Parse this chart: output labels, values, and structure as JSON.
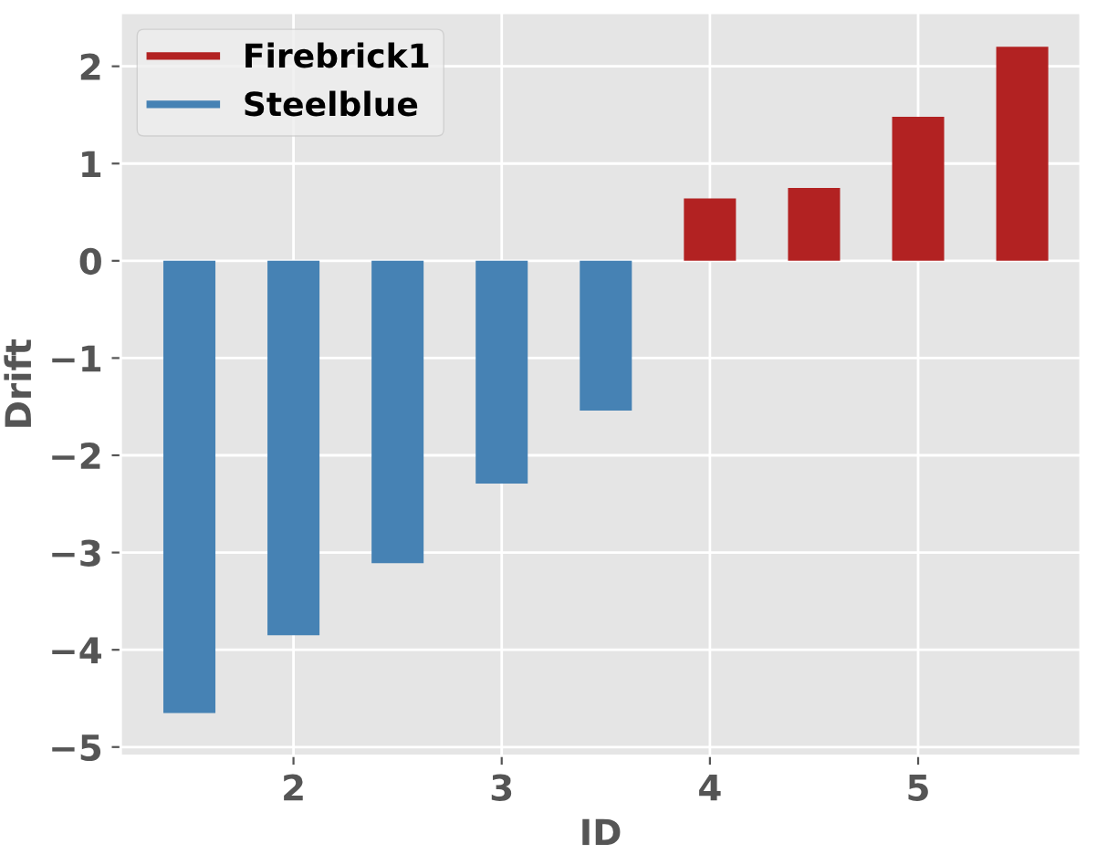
{
  "chart_data": {
    "type": "bar",
    "xlabel": "ID",
    "ylabel": "Drift",
    "series": [
      {
        "name": "Firebrick1",
        "color": "#b22222",
        "x": [
          4.0,
          4.5,
          5.0,
          5.5
        ],
        "values": [
          0.64,
          0.75,
          1.48,
          2.2
        ]
      },
      {
        "name": "Steelblue",
        "color": "#4682b4",
        "x": [
          1.5,
          2.0,
          2.5,
          3.0,
          3.5
        ],
        "values": [
          -4.65,
          -3.85,
          -3.11,
          -2.29,
          -1.54
        ]
      }
    ],
    "xlim": [
      1.17,
      5.78
    ],
    "ylim": [
      -5.09,
      2.55
    ],
    "xticks": [
      2,
      3,
      4,
      5
    ],
    "yticks": [
      {
        "value": -5,
        "label": "−5"
      },
      {
        "value": -4,
        "label": "−4"
      },
      {
        "value": -3,
        "label": "−3"
      },
      {
        "value": -2,
        "label": "−2"
      },
      {
        "value": -1,
        "label": "−1"
      },
      0,
      1,
      2
    ],
    "grid": true,
    "legend": "top left"
  }
}
